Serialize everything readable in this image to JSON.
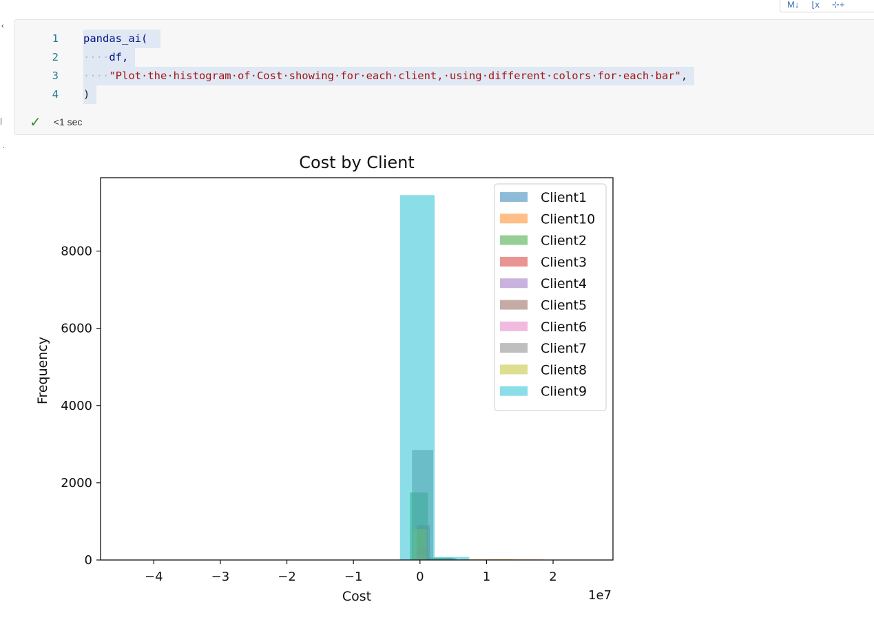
{
  "toolbar": {
    "buttons": [
      {
        "name": "markdown-toggle-button",
        "label": "M↓"
      },
      {
        "name": "clear-output-button",
        "label": "⌊x"
      },
      {
        "name": "add-comment-button",
        "label": "⊹+"
      }
    ]
  },
  "cell": {
    "lines": [
      {
        "number": "1",
        "indent": "",
        "text": "pandas_ai("
      },
      {
        "number": "2",
        "indent": "····",
        "text": "df,"
      },
      {
        "number": "3",
        "indent": "····",
        "text": "\"Plot·the·histogram·of·Cost·showing·for·each·client,·using·different·colors·for·each·bar\","
      },
      {
        "number": "4",
        "indent": "",
        "text": ")"
      }
    ],
    "status_time": "<1 sec"
  },
  "chart_data": {
    "type": "bar",
    "title": "Cost by Client",
    "xlabel": "Cost",
    "ylabel": "Frequency",
    "x_offset_label": "1e7",
    "xlim": [
      -4.8,
      2.9
    ],
    "ylim": [
      0,
      9900
    ],
    "x_ticks": [
      -4,
      -3,
      -2,
      -1,
      0,
      1,
      2
    ],
    "x_tick_labels": [
      "−4",
      "−3",
      "−2",
      "−1",
      "0",
      "1",
      "2"
    ],
    "y_ticks": [
      0,
      2000,
      4000,
      6000,
      8000
    ],
    "y_tick_labels": [
      "0",
      "2000",
      "4000",
      "6000",
      "8000"
    ],
    "legend_position": "top-right",
    "series": [
      {
        "name": "Client1",
        "color": "#1f77b4",
        "bins": [
          [
            -0.05,
            0.05,
            120
          ]
        ]
      },
      {
        "name": "Client10",
        "color": "#ff7f0e",
        "bins": [
          [
            0.6,
            1.0,
            20
          ],
          [
            1.0,
            1.4,
            25
          ],
          [
            1.4,
            1.85,
            15
          ]
        ]
      },
      {
        "name": "Client2",
        "color": "#2ca02c",
        "bins": [
          [
            -0.15,
            0.12,
            1750
          ],
          [
            0.12,
            0.5,
            60
          ]
        ]
      },
      {
        "name": "Client3",
        "color": "#d62728",
        "bins": [
          [
            -0.05,
            0.1,
            300
          ]
        ]
      },
      {
        "name": "Client4",
        "color": "#9467bd",
        "bins": [
          [
            -0.05,
            0.1,
            200
          ]
        ]
      },
      {
        "name": "Client5",
        "color": "#8c564b",
        "bins": [
          [
            -0.05,
            0.15,
            900
          ]
        ]
      },
      {
        "name": "Client6",
        "color": "#e377c2",
        "bins": [
          [
            -0.05,
            0.1,
            150
          ]
        ]
      },
      {
        "name": "Client7",
        "color": "#7f7f7f",
        "bins": [
          [
            -0.12,
            0.2,
            2850
          ],
          [
            0.2,
            0.55,
            50
          ]
        ]
      },
      {
        "name": "Client8",
        "color": "#bcbd22",
        "bins": [
          [
            -0.1,
            0.1,
            800
          ]
        ]
      },
      {
        "name": "Client9",
        "color": "#17becf",
        "bins": [
          [
            -0.3,
            0.22,
            9450
          ],
          [
            0.22,
            0.74,
            80
          ]
        ]
      }
    ]
  }
}
